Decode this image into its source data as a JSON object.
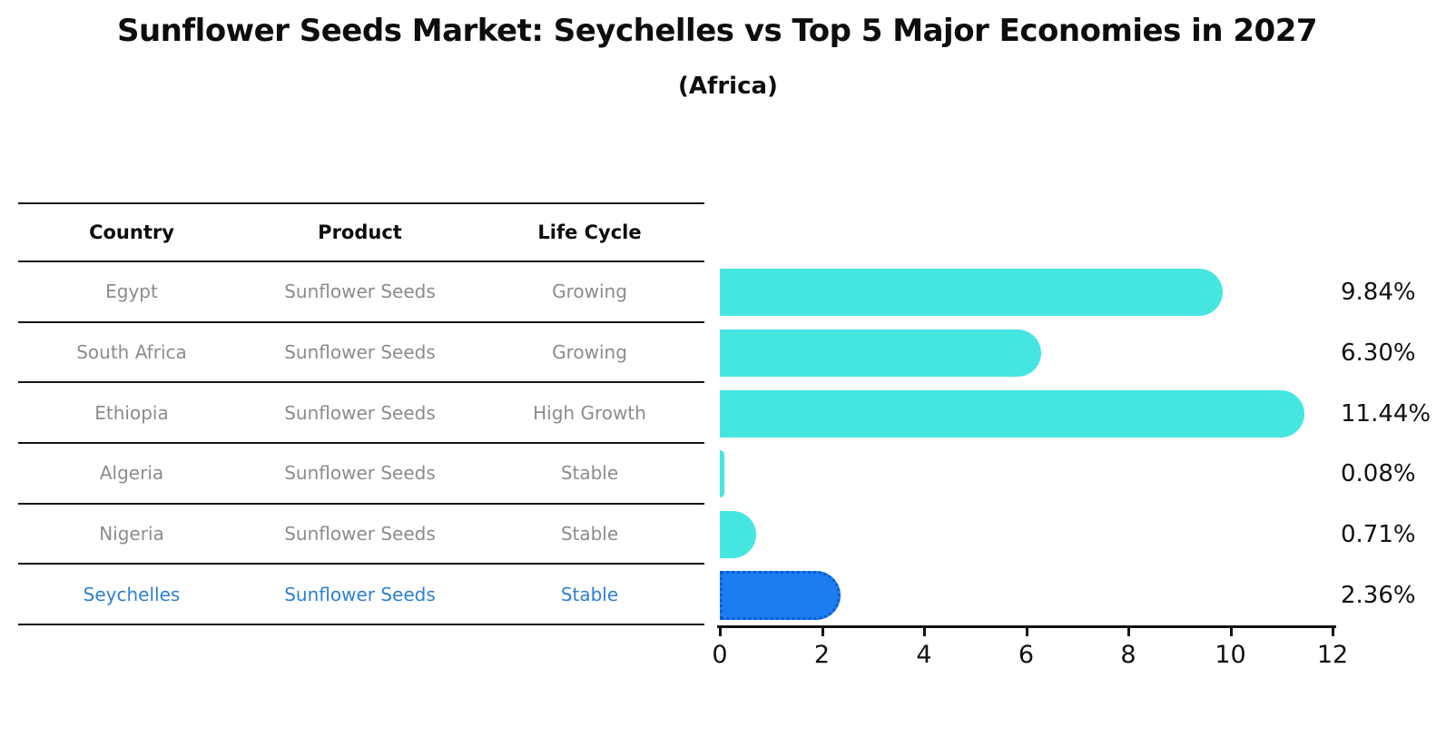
{
  "title": "Sunflower Seeds Market: Seychelles vs Top 5 Major Economies in 2027",
  "subtitle": "(Africa)",
  "table": {
    "headers": [
      "Country",
      "Product",
      "Life Cycle"
    ],
    "rows": [
      {
        "country": "Egypt",
        "product": "Sunflower Seeds",
        "life_cycle": "Growing",
        "highlight": false
      },
      {
        "country": "South Africa",
        "product": "Sunflower Seeds",
        "life_cycle": "Growing",
        "highlight": false
      },
      {
        "country": "Ethiopia",
        "product": "Sunflower Seeds",
        "life_cycle": "High Growth",
        "highlight": false
      },
      {
        "country": "Algeria",
        "product": "Sunflower Seeds",
        "life_cycle": "Stable",
        "highlight": false
      },
      {
        "country": "Nigeria",
        "product": "Sunflower Seeds",
        "life_cycle": "Stable",
        "highlight": false
      },
      {
        "country": "Seychelles",
        "product": "Sunflower Seeds",
        "life_cycle": "Stable",
        "highlight": true
      }
    ]
  },
  "chart_data": {
    "type": "bar",
    "orientation": "horizontal",
    "title": "Sunflower Seeds Market: Seychelles vs Top 5 Major Economies in 2027",
    "subtitle": "(Africa)",
    "categories": [
      "Egypt",
      "South Africa",
      "Ethiopia",
      "Algeria",
      "Nigeria",
      "Seychelles"
    ],
    "values": [
      9.84,
      6.3,
      11.44,
      0.08,
      0.71,
      2.36
    ],
    "value_labels": [
      "9.84%",
      "6.30%",
      "11.44%",
      "0.08%",
      "0.71%",
      "2.36%"
    ],
    "xlabel": "",
    "ylabel": "",
    "xlim": [
      0,
      12
    ],
    "x_ticks": [
      0,
      2,
      4,
      6,
      8,
      10,
      12
    ],
    "grid": false,
    "legend": false,
    "bar_color": "#45E6E0",
    "highlight_index": 5,
    "highlight_bar_color": "#1C7DF0",
    "highlight_bar_border": "#0B5BD0"
  },
  "colors": {
    "title_text": "#0D0D0D",
    "table_text": "#8C8C8C",
    "highlight_text": "#2E80D0",
    "axis_line": "#111111",
    "value_label_text": "#111111"
  }
}
